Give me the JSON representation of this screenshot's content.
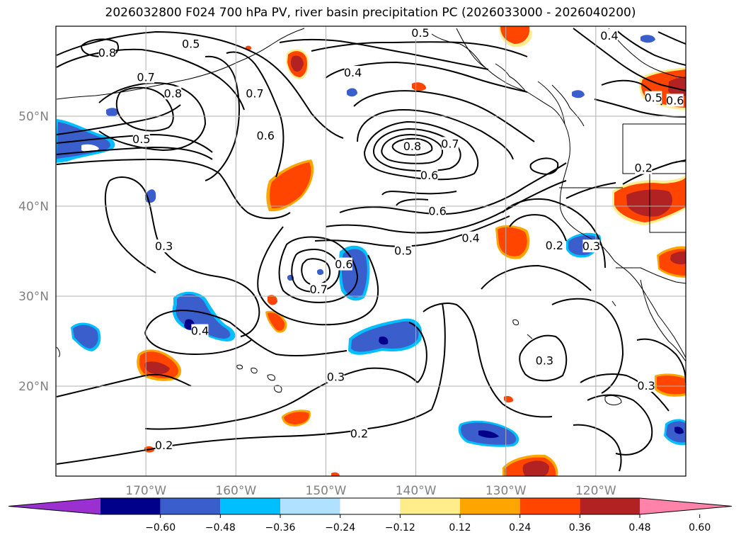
{
  "title": "2026032800 F024 700 hPa PV, river basin precipitation PC (2026033000 - 2026040200)",
  "map": {
    "lon_range": [
      -180,
      -110
    ],
    "lat_range": [
      10,
      60
    ],
    "longitude_labels": [
      {
        "lon": -170,
        "text": "170°W"
      },
      {
        "lon": -160,
        "text": "160°W"
      },
      {
        "lon": -150,
        "text": "150°W"
      },
      {
        "lon": -140,
        "text": "140°W"
      },
      {
        "lon": -130,
        "text": "130°W"
      },
      {
        "lon": -120,
        "text": "120°W"
      }
    ],
    "latitude_labels": [
      {
        "lat": 50,
        "text": "50°N"
      },
      {
        "lat": 40,
        "text": "40°N"
      },
      {
        "lat": 30,
        "text": "30°N"
      },
      {
        "lat": 20,
        "text": "20°N"
      }
    ],
    "grid": true
  },
  "pv_contour_labels": [
    {
      "text": "0.8",
      "lon": -174.3,
      "lat": 57.0
    },
    {
      "text": "0.5",
      "lon": -165.0,
      "lat": 58.0
    },
    {
      "text": "0.7",
      "lon": -170.0,
      "lat": 54.3
    },
    {
      "text": "0.8",
      "lon": -167.0,
      "lat": 52.5
    },
    {
      "text": "0.7",
      "lon": -157.9,
      "lat": 52.5
    },
    {
      "text": "0.5",
      "lon": -170.5,
      "lat": 47.4
    },
    {
      "text": "0.6",
      "lon": -156.7,
      "lat": 47.8
    },
    {
      "text": "0.5",
      "lon": -139.5,
      "lat": 59.2
    },
    {
      "text": "0.4",
      "lon": -147.0,
      "lat": 54.8
    },
    {
      "text": "0.4",
      "lon": -118.5,
      "lat": 58.9
    },
    {
      "text": "0.8",
      "lon": -140.4,
      "lat": 46.6
    },
    {
      "text": "0.7",
      "lon": -136.2,
      "lat": 46.9
    },
    {
      "text": "0.6",
      "lon": -138.5,
      "lat": 43.4
    },
    {
      "text": "0.6",
      "lon": -137.6,
      "lat": 39.4
    },
    {
      "text": "0.4",
      "lon": -133.9,
      "lat": 36.4
    },
    {
      "text": "0.5",
      "lon": -141.4,
      "lat": 35.0
    },
    {
      "text": "0.2",
      "lon": -124.6,
      "lat": 35.6
    },
    {
      "text": "0.3",
      "lon": -120.5,
      "lat": 35.5
    },
    {
      "text": "0.2",
      "lon": -114.7,
      "lat": 44.2
    },
    {
      "text": "0.3",
      "lon": -168.0,
      "lat": 35.5
    },
    {
      "text": "0.6",
      "lon": -148.0,
      "lat": 33.5
    },
    {
      "text": "0.7",
      "lon": -150.8,
      "lat": 30.7
    },
    {
      "text": "0.4",
      "lon": -164.0,
      "lat": 26.1
    },
    {
      "text": "0.3",
      "lon": -148.9,
      "lat": 21.0
    },
    {
      "text": "0.3",
      "lon": -125.7,
      "lat": 22.8
    },
    {
      "text": "0.3",
      "lon": -114.4,
      "lat": 20.0
    },
    {
      "text": "0.2",
      "lon": -168.0,
      "lat": 13.4
    },
    {
      "text": "0.2",
      "lon": -146.3,
      "lat": 14.7
    },
    {
      "text": "0.6",
      "lon": -111.2,
      "lat": 51.7
    },
    {
      "text": "0.5",
      "lon": -113.6,
      "lat": 52.0
    }
  ],
  "colorbar": {
    "colors": [
      "#9b30d0",
      "#00008b",
      "#3a5fcd",
      "#00bfff",
      "#b0e2ff",
      "#ffffff",
      "#ffec8b",
      "#ffa500",
      "#ff4500",
      "#b22222",
      "#ff82ab"
    ],
    "tick_labels": [
      "−0.60",
      "−0.48",
      "−0.36",
      "−0.24",
      "−0.12",
      "0.12",
      "0.24",
      "0.36",
      "0.48",
      "0.60"
    ],
    "extend": "both"
  },
  "precip_colors": {
    "pos_strong": "#b22222",
    "pos_mid": "#ff4500",
    "pos_weak": "#ffa500",
    "pos_faint": "#ffec8b",
    "neg_strong": "#00008b",
    "neg_mid": "#3a5fcd",
    "neg_weak": "#00bfff"
  }
}
